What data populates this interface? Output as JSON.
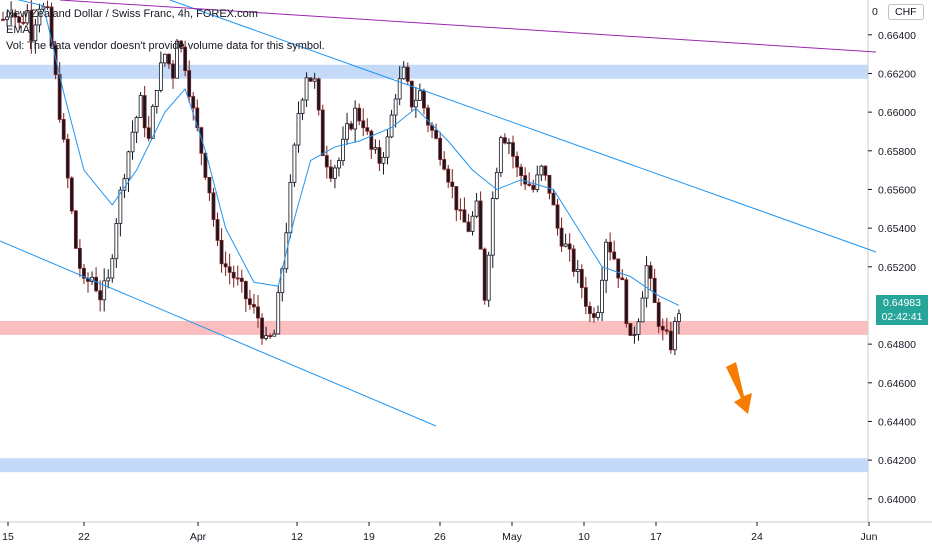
{
  "legend": {
    "title": "New Zealand Dollar / Swiss Franc, 4h, FOREX.com",
    "ema": "EMA",
    "vol": "Vol: The data vendor doesn't provide volume data for this symbol."
  },
  "currency": {
    "prefix": "0",
    "badge": "CHF"
  },
  "last_price": {
    "value": "0.64983",
    "timer": "02:42:41"
  },
  "colors": {
    "up": "#26a69a",
    "down": "#ef5350",
    "candle": "#131722",
    "ema": "#2196f3",
    "trend": "#2196f3",
    "resistance_line": "#9c27b0",
    "zone_blue": "#bbd4f7",
    "zone_red": "#f9b3b3",
    "arrow": "#f57c00"
  },
  "chart_data": {
    "type": "candlestick",
    "y_axis": {
      "min": 0.6388,
      "max": 0.6658,
      "ticks": [
        "0.66400",
        "0.66200",
        "0.66000",
        "0.65800",
        "0.65600",
        "0.65400",
        "0.65200",
        "0.64800",
        "0.64600",
        "0.64400",
        "0.64200",
        "0.64000"
      ]
    },
    "x_axis": {
      "ticks": [
        "15",
        "22",
        "Apr",
        "12",
        "19",
        "26",
        "May",
        "10",
        "17",
        "24",
        "Jun"
      ]
    },
    "ohlc_path": [
      [
        0,
        0.6648
      ],
      [
        2,
        0.6655
      ],
      [
        4,
        0.6645
      ],
      [
        6,
        0.6652
      ],
      [
        7,
        0.6641
      ],
      [
        9,
        0.6656
      ],
      [
        11,
        0.665
      ],
      [
        12,
        0.6634
      ],
      [
        14,
        0.66
      ],
      [
        16,
        0.6565
      ],
      [
        18,
        0.653
      ],
      [
        20,
        0.651
      ],
      [
        22,
        0.6515
      ],
      [
        24,
        0.6505
      ],
      [
        26,
        0.6512
      ],
      [
        28,
        0.6545
      ],
      [
        30,
        0.657
      ],
      [
        32,
        0.659
      ],
      [
        34,
        0.6605
      ],
      [
        36,
        0.6585
      ],
      [
        38,
        0.6615
      ],
      [
        40,
        0.663
      ],
      [
        42,
        0.662
      ],
      [
        43,
        0.664
      ],
      [
        45,
        0.6625
      ],
      [
        47,
        0.66
      ],
      [
        49,
        0.658
      ],
      [
        51,
        0.656
      ],
      [
        53,
        0.653
      ],
      [
        55,
        0.652
      ],
      [
        57,
        0.6515
      ],
      [
        59,
        0.6508
      ],
      [
        61,
        0.65
      ],
      [
        63,
        0.6494
      ],
      [
        65,
        0.648
      ],
      [
        67,
        0.6485
      ],
      [
        69,
        0.652
      ],
      [
        71,
        0.656
      ],
      [
        73,
        0.66
      ],
      [
        75,
        0.662
      ],
      [
        77,
        0.6615
      ],
      [
        79,
        0.658
      ],
      [
        81,
        0.657
      ],
      [
        83,
        0.6575
      ],
      [
        85,
        0.659
      ],
      [
        87,
        0.66
      ],
      [
        89,
        0.6595
      ],
      [
        91,
        0.658
      ],
      [
        93,
        0.6575
      ],
      [
        95,
        0.6585
      ],
      [
        97,
        0.661
      ],
      [
        99,
        0.662
      ],
      [
        101,
        0.6605
      ],
      [
        103,
        0.661
      ],
      [
        105,
        0.6595
      ],
      [
        107,
        0.6585
      ],
      [
        109,
        0.6575
      ],
      [
        111,
        0.656
      ],
      [
        113,
        0.6545
      ],
      [
        115,
        0.654
      ],
      [
        117,
        0.655
      ],
      [
        119,
        0.6505
      ],
      [
        121,
        0.6555
      ],
      [
        123,
        0.659
      ],
      [
        125,
        0.6585
      ],
      [
        127,
        0.657
      ],
      [
        129,
        0.6565
      ],
      [
        131,
        0.656
      ],
      [
        133,
        0.657
      ],
      [
        135,
        0.656
      ],
      [
        137,
        0.654
      ],
      [
        139,
        0.653
      ],
      [
        141,
        0.652
      ],
      [
        143,
        0.651
      ],
      [
        145,
        0.6495
      ],
      [
        147,
        0.65
      ],
      [
        149,
        0.6535
      ],
      [
        151,
        0.6525
      ],
      [
        153,
        0.651
      ],
      [
        155,
        0.648
      ],
      [
        157,
        0.6495
      ],
      [
        159,
        0.652
      ],
      [
        161,
        0.65
      ],
      [
        163,
        0.6485
      ],
      [
        165,
        0.648
      ],
      [
        167,
        0.6498
      ]
    ],
    "ema_points": [
      [
        0,
        0.666
      ],
      [
        10,
        0.6655
      ],
      [
        15,
        0.661
      ],
      [
        20,
        0.657
      ],
      [
        27,
        0.6552
      ],
      [
        33,
        0.657
      ],
      [
        40,
        0.66
      ],
      [
        45,
        0.6612
      ],
      [
        50,
        0.658
      ],
      [
        55,
        0.654
      ],
      [
        62,
        0.6512
      ],
      [
        68,
        0.651
      ],
      [
        72,
        0.6545
      ],
      [
        76,
        0.6575
      ],
      [
        82,
        0.6582
      ],
      [
        88,
        0.6585
      ],
      [
        96,
        0.6592
      ],
      [
        102,
        0.6602
      ],
      [
        110,
        0.6585
      ],
      [
        116,
        0.657
      ],
      [
        122,
        0.656
      ],
      [
        128,
        0.6565
      ],
      [
        136,
        0.656
      ],
      [
        142,
        0.654
      ],
      [
        148,
        0.652
      ],
      [
        155,
        0.6515
      ],
      [
        162,
        0.6505
      ],
      [
        167,
        0.65
      ]
    ],
    "annotations": {
      "zones": [
        {
          "from": 0.66215,
          "to": 0.66245,
          "color": "blue"
        },
        {
          "from": 0.64885,
          "to": 0.6492,
          "color": "red"
        },
        {
          "from": 0.64175,
          "to": 0.6421,
          "color": "blue"
        }
      ]
    }
  }
}
